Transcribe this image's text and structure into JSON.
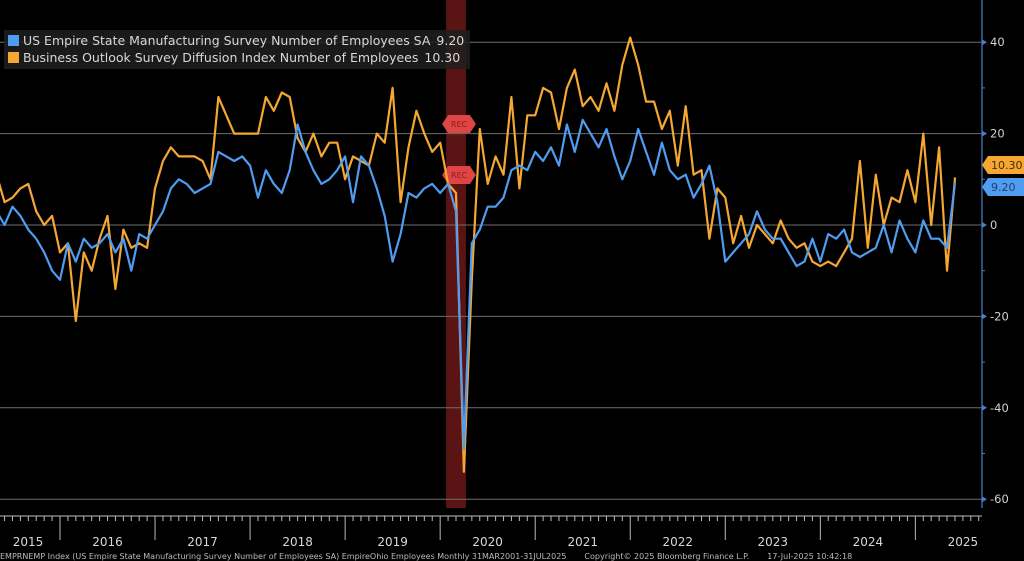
{
  "chart_data": {
    "type": "line",
    "title": "",
    "xlabel": "",
    "ylabel": "",
    "x_start": "2015-01",
    "frequency": "monthly",
    "ylim": [
      -60,
      50
    ],
    "y_ticks": [
      40,
      20,
      0,
      -20,
      -40,
      -60
    ],
    "x_tick_labels": [
      "2015",
      "2016",
      "2017",
      "2018",
      "2019",
      "2020",
      "2021",
      "2022",
      "2023",
      "2024",
      "2025"
    ],
    "grid": true,
    "legend_position": "top-left",
    "recession": {
      "label": "REC",
      "start": "2020-02",
      "end": "2020-04"
    },
    "series": [
      {
        "name": "US Empire State Manufacturing Survey Number of Employees SA",
        "last_value": "9.20",
        "color": "#4f9cf0",
        "values": [
          10,
          8,
          6,
          4,
          3,
          0,
          4,
          2,
          -1,
          -3,
          -6,
          -10,
          -12,
          -4,
          -8,
          -3,
          -5,
          -4,
          -2,
          -6,
          -3,
          -10,
          -2,
          -3,
          0,
          3,
          8,
          10,
          9,
          7,
          8,
          9,
          16,
          15,
          14,
          15,
          13,
          6,
          12,
          9,
          7,
          12,
          22,
          16,
          12,
          9,
          10,
          12,
          15,
          5,
          15,
          13,
          8,
          2,
          -8,
          -2,
          7,
          6,
          8,
          9,
          7,
          9,
          3,
          -49,
          -4,
          -1,
          4,
          4,
          6,
          12,
          13,
          12,
          16,
          14,
          17,
          13,
          22,
          16,
          23,
          20,
          17,
          21,
          15,
          10,
          14,
          21,
          16,
          11,
          18,
          12,
          10,
          11,
          6,
          9,
          13,
          5,
          -8,
          -6,
          -4,
          -2,
          3,
          -1,
          -3,
          -3,
          -6,
          -9,
          -8,
          -3,
          -8,
          -2,
          -3,
          -1,
          -6,
          -7,
          -6,
          -5,
          0,
          -6,
          1,
          -3,
          -6,
          1,
          -3,
          -3,
          -5,
          9.2
        ]
      },
      {
        "name": "Business Outlook Survey Diffusion Index Number of Employees",
        "last_value": "10.30",
        "color": "#f5a733",
        "values": [
          12,
          10,
          9,
          7,
          11,
          5,
          6,
          8,
          9,
          3,
          0,
          2,
          -6,
          -4,
          -21,
          -6,
          -10,
          -3,
          2,
          -14,
          -1,
          -5,
          -4,
          -5,
          8,
          14,
          17,
          15,
          15,
          15,
          14,
          10,
          28,
          24,
          20,
          20,
          20,
          20,
          28,
          25,
          29,
          28,
          19,
          16,
          20,
          15,
          18,
          18,
          10,
          15,
          14,
          13,
          20,
          18,
          30,
          5,
          17,
          25,
          20,
          16,
          18,
          9,
          7,
          -54,
          -12,
          21,
          9,
          15,
          11,
          28,
          8,
          24,
          24,
          30,
          29,
          21,
          30,
          34,
          26,
          28,
          25,
          31,
          25,
          35,
          41,
          35,
          27,
          27,
          21,
          25,
          13,
          26,
          11,
          12,
          -3,
          8,
          6,
          -4,
          2,
          -5,
          0,
          -2,
          -4,
          1,
          -3,
          -5,
          -4,
          -8,
          -9,
          -8,
          -9,
          -6,
          -3,
          14,
          -5,
          11,
          0,
          6,
          5,
          12,
          5,
          20,
          0,
          17,
          -10,
          10.3
        ]
      }
    ]
  },
  "footer": {
    "source": "EMPRNEMP Index (US Empire State Manufacturing Survey Number of Employees SA) EmpireOhio Employees  Monthly 31MAR2001-31JUL2025",
    "copyright": "Copyright© 2025 Bloomberg Finance L.P.",
    "timestamp": "17-Jul-2025 10:42:18"
  }
}
